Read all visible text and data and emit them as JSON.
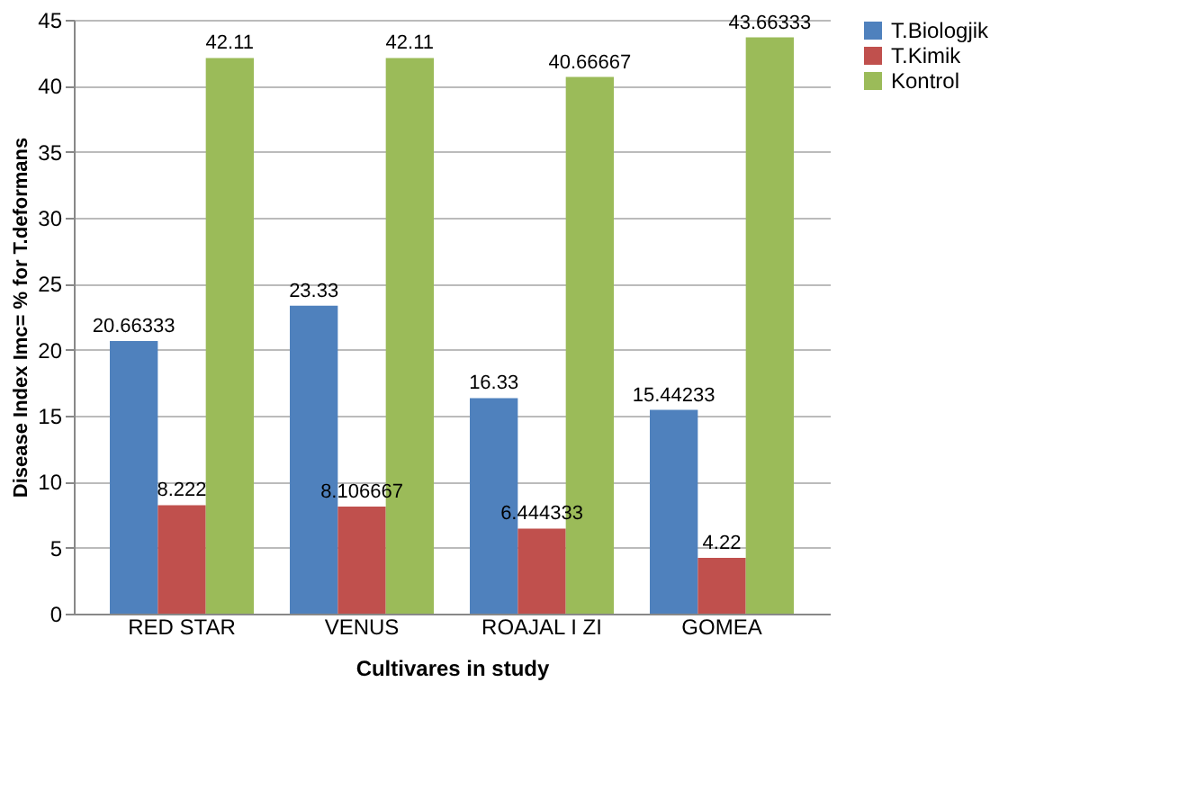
{
  "chart_data": {
    "type": "bar",
    "xlabel": "Cultivares in study",
    "ylabel": "Disease Index Imc= % for  T.deformans",
    "categories": [
      "RED STAR",
      "VENUS",
      "ROAJAL I ZI",
      "GOMEA"
    ],
    "series": [
      {
        "name": "T.Biologjik",
        "color": "#4f81bd",
        "values": [
          20.66333,
          23.33,
          16.33,
          15.44233
        ]
      },
      {
        "name": "T.Kimik",
        "color": "#c0504d",
        "values": [
          8.222,
          8.106667,
          6.444333,
          4.22
        ]
      },
      {
        "name": "Kontrol",
        "color": "#9bbb59",
        "values": [
          42.11,
          42.11,
          40.66667,
          43.66333
        ]
      }
    ],
    "ylim": [
      0,
      45
    ],
    "yticks": [
      0,
      5,
      10,
      15,
      20,
      25,
      30,
      35,
      40,
      45
    ],
    "grid": "y",
    "legend": "right",
    "data_labels": true
  }
}
